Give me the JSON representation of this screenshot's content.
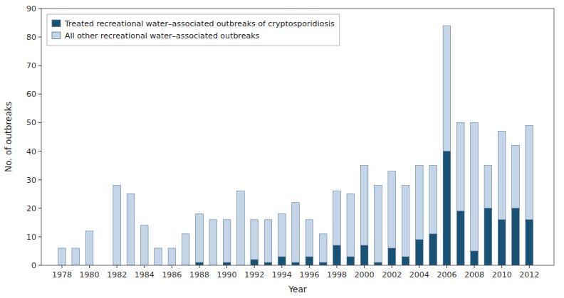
{
  "chart_data": {
    "type": "bar",
    "stacked": true,
    "x": [
      1978,
      1979,
      1980,
      1981,
      1982,
      1983,
      1984,
      1985,
      1986,
      1987,
      1988,
      1989,
      1990,
      1991,
      1992,
      1993,
      1994,
      1995,
      1996,
      1997,
      1998,
      1999,
      2000,
      2001,
      2002,
      2003,
      2004,
      2005,
      2006,
      2007,
      2008,
      2009,
      2010,
      2011,
      2012
    ],
    "series": [
      {
        "name": "Treated recreational water–associated outbreaks of cryptosporidiosis",
        "color": "#1a5276",
        "values": [
          0,
          0,
          0,
          0,
          0,
          0,
          0,
          0,
          0,
          0,
          1,
          0,
          1,
          0,
          2,
          1,
          3,
          1,
          3,
          1,
          7,
          3,
          7,
          1,
          6,
          3,
          9,
          11,
          40,
          19,
          5,
          20,
          16,
          20,
          16
        ]
      },
      {
        "name": "All other recreational water–associated outbreaks",
        "color": "#c5d5e8",
        "values": [
          6,
          6,
          12,
          0,
          28,
          25,
          14,
          6,
          6,
          11,
          17,
          16,
          15,
          26,
          14,
          15,
          15,
          21,
          13,
          10,
          19,
          22,
          28,
          27,
          27,
          25,
          26,
          24,
          44,
          31,
          45,
          15,
          31,
          22,
          33
        ]
      }
    ],
    "x_label": "Year",
    "y_label": "No. of outbreaks",
    "xlim": [
      1976.5,
      2013.8
    ],
    "xticks": [
      1978,
      1980,
      1982,
      1984,
      1986,
      1988,
      1990,
      1992,
      1994,
      1996,
      1998,
      2000,
      2002,
      2004,
      2006,
      2008,
      2010,
      2012
    ],
    "ylim": [
      0,
      90
    ],
    "yticks": [
      0,
      10,
      20,
      30,
      40,
      50,
      60,
      70,
      80,
      90
    ],
    "legend": "upper left",
    "grid": false
  }
}
